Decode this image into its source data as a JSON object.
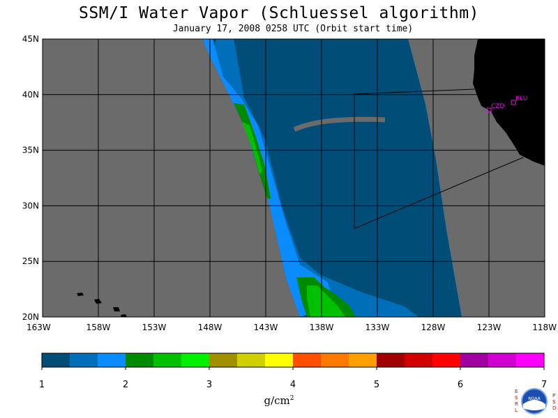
{
  "title": "SSM/I Water Vapor (Schluessel algorithm)",
  "subtitle": "January 17, 2008  0258 UTC  (Orbit start time)",
  "map": {
    "lat_labels": [
      "45N",
      "40N",
      "35N",
      "30N",
      "25N",
      "20N"
    ],
    "lon_labels": [
      "163W",
      "158W",
      "153W",
      "148W",
      "143W",
      "138W",
      "133W",
      "128W",
      "123W",
      "118W"
    ],
    "stations": [
      {
        "name": "CZD",
        "lon": -123.0,
        "lat": 38.6
      },
      {
        "name": "BLU",
        "lon": -120.8,
        "lat": 39.3
      }
    ],
    "colors": {
      "land": "#000000",
      "no_data": "#6b6b6b",
      "station": "#ff00ff"
    }
  },
  "colorbar": {
    "labels": [
      "1",
      "2",
      "3",
      "4",
      "5",
      "6",
      "7"
    ],
    "colors": [
      "#004e78",
      "#006eb8",
      "#0a8cff",
      "#008a00",
      "#00c000",
      "#00f000",
      "#a09000",
      "#d0d000",
      "#ffff00",
      "#ff5000",
      "#ff7800",
      "#ffa000",
      "#a00000",
      "#d00000",
      "#ff0000",
      "#a000a0",
      "#d000d0",
      "#ff00ff"
    ],
    "units": "g/cm²"
  },
  "logo": {
    "letters_left": "ESRL",
    "letters_right": "PSD",
    "badge": "NOAA"
  }
}
